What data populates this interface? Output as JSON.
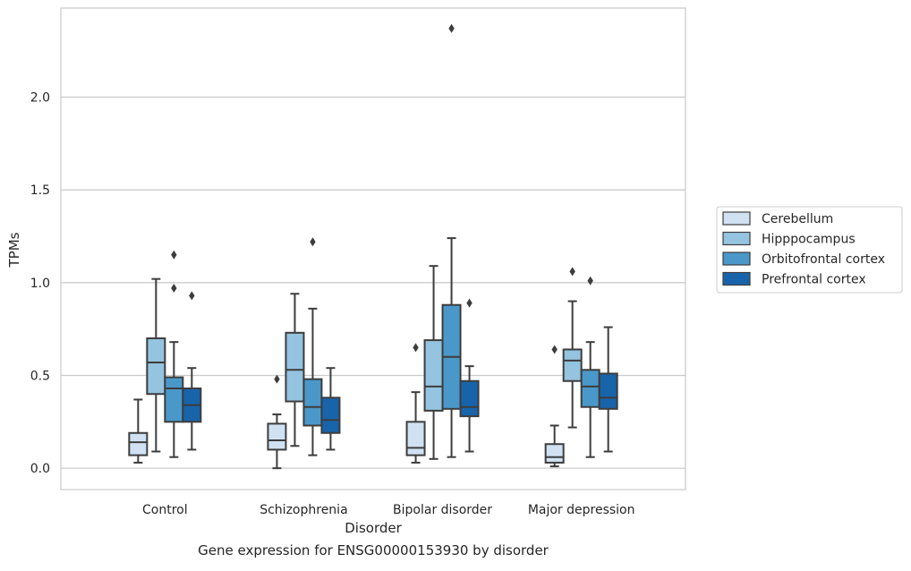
{
  "caption": "Gene expression for ENSG00000153930 by disorder",
  "chart_data": {
    "type": "box",
    "title": "",
    "xlabel": "Disorder",
    "ylabel": "TPMs",
    "ylim": [
      -0.115,
      2.48
    ],
    "yticks": [
      0.0,
      0.5,
      1.0,
      1.5,
      2.0
    ],
    "grid": "horizontal",
    "legend_position": "right",
    "categories": [
      "Control",
      "Schizophrenia",
      "Bipolar disorder",
      "Major depression"
    ],
    "series": [
      {
        "name": "Cerebellum",
        "color": "#d0e1f2",
        "boxes": [
          {
            "low": 0.03,
            "q1": 0.07,
            "median": 0.14,
            "q3": 0.19,
            "high": 0.37,
            "outliers": []
          },
          {
            "low": 0.0,
            "q1": 0.1,
            "median": 0.15,
            "q3": 0.24,
            "high": 0.29,
            "outliers": [
              0.48
            ]
          },
          {
            "low": 0.03,
            "q1": 0.07,
            "median": 0.11,
            "q3": 0.25,
            "high": 0.41,
            "outliers": [
              0.65
            ]
          },
          {
            "low": 0.01,
            "q1": 0.03,
            "median": 0.06,
            "q3": 0.13,
            "high": 0.23,
            "outliers": [
              0.64
            ]
          }
        ]
      },
      {
        "name": "Hipppocampus",
        "color": "#94c4df",
        "boxes": [
          {
            "low": 0.09,
            "q1": 0.4,
            "median": 0.57,
            "q3": 0.7,
            "high": 1.02,
            "outliers": []
          },
          {
            "low": 0.12,
            "q1": 0.36,
            "median": 0.53,
            "q3": 0.73,
            "high": 0.94,
            "outliers": []
          },
          {
            "low": 0.05,
            "q1": 0.31,
            "median": 0.44,
            "q3": 0.69,
            "high": 1.09,
            "outliers": []
          },
          {
            "low": 0.22,
            "q1": 0.47,
            "median": 0.58,
            "q3": 0.64,
            "high": 0.9,
            "outliers": [
              1.06
            ]
          }
        ]
      },
      {
        "name": "Orbitofrontal cortex",
        "color": "#4a98c9",
        "boxes": [
          {
            "low": 0.06,
            "q1": 0.25,
            "median": 0.43,
            "q3": 0.49,
            "high": 0.68,
            "outliers": [
              0.97,
              1.15
            ]
          },
          {
            "low": 0.07,
            "q1": 0.23,
            "median": 0.33,
            "q3": 0.48,
            "high": 0.86,
            "outliers": [
              1.22
            ]
          },
          {
            "low": 0.06,
            "q1": 0.32,
            "median": 0.6,
            "q3": 0.88,
            "high": 1.24,
            "outliers": [
              2.37
            ]
          },
          {
            "low": 0.06,
            "q1": 0.33,
            "median": 0.44,
            "q3": 0.53,
            "high": 0.68,
            "outliers": [
              1.01
            ]
          }
        ]
      },
      {
        "name": "Prefrontal cortex",
        "color": "#1764ab",
        "boxes": [
          {
            "low": 0.1,
            "q1": 0.25,
            "median": 0.34,
            "q3": 0.43,
            "high": 0.54,
            "outliers": [
              0.93
            ]
          },
          {
            "low": 0.1,
            "q1": 0.19,
            "median": 0.26,
            "q3": 0.38,
            "high": 0.54,
            "outliers": []
          },
          {
            "low": 0.09,
            "q1": 0.28,
            "median": 0.33,
            "q3": 0.47,
            "high": 0.55,
            "outliers": [
              0.89
            ]
          },
          {
            "low": 0.09,
            "q1": 0.32,
            "median": 0.38,
            "q3": 0.51,
            "high": 0.76,
            "outliers": []
          }
        ]
      }
    ]
  }
}
